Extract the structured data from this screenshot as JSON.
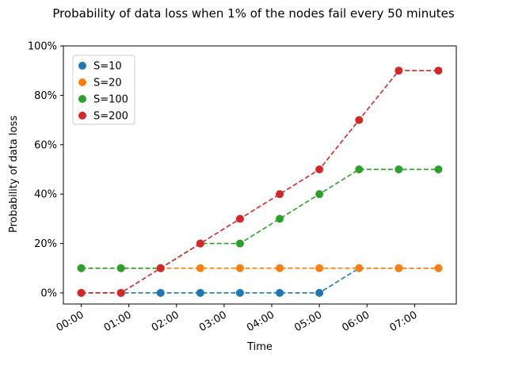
{
  "chart_data": {
    "type": "line",
    "title": "Probability of data loss when 1% of the nodes fail every 50 minutes",
    "xlabel": "Time",
    "ylabel": "Probability of data loss",
    "x": [
      "00:00",
      "00:50",
      "01:40",
      "02:30",
      "03:20",
      "04:10",
      "05:00",
      "05:50",
      "06:40",
      "07:30"
    ],
    "x_minutes": [
      0,
      50,
      100,
      150,
      200,
      250,
      300,
      350,
      400,
      450
    ],
    "xticks": [
      {
        "label": "00:00",
        "minutes": 0
      },
      {
        "label": "01:00",
        "minutes": 60
      },
      {
        "label": "02:00",
        "minutes": 120
      },
      {
        "label": "03:00",
        "minutes": 180
      },
      {
        "label": "04:00",
        "minutes": 240
      },
      {
        "label": "05:00",
        "minutes": 300
      },
      {
        "label": "06:00",
        "minutes": 360
      },
      {
        "label": "07:00",
        "minutes": 420
      }
    ],
    "yticks": [
      {
        "label": "0%",
        "value": 0
      },
      {
        "label": "20%",
        "value": 20
      },
      {
        "label": "40%",
        "value": 40
      },
      {
        "label": "60%",
        "value": 60
      },
      {
        "label": "80%",
        "value": 80
      },
      {
        "label": "100%",
        "value": 100
      }
    ],
    "xlim": [
      -22.5,
      472.5
    ],
    "ylim": [
      -4.5,
      100
    ],
    "grid": false,
    "legend_position": "top-left",
    "line_style": "dashed",
    "marker": "circle",
    "series": [
      {
        "name": "S=10",
        "color": "#1f77b4",
        "values": [
          0,
          0,
          0,
          0,
          0,
          0,
          0,
          10,
          10,
          10
        ]
      },
      {
        "name": "S=20",
        "color": "#ff7f0e",
        "values": [
          10,
          10,
          10,
          10,
          10,
          10,
          10,
          10,
          10,
          10
        ]
      },
      {
        "name": "S=100",
        "color": "#2ca02c",
        "values": [
          10,
          10,
          10,
          20,
          20,
          30,
          40,
          50,
          50,
          50
        ]
      },
      {
        "name": "S=200",
        "color": "#d62728",
        "values": [
          0,
          0,
          10,
          20,
          30,
          40,
          50,
          70,
          90,
          90
        ]
      }
    ]
  }
}
